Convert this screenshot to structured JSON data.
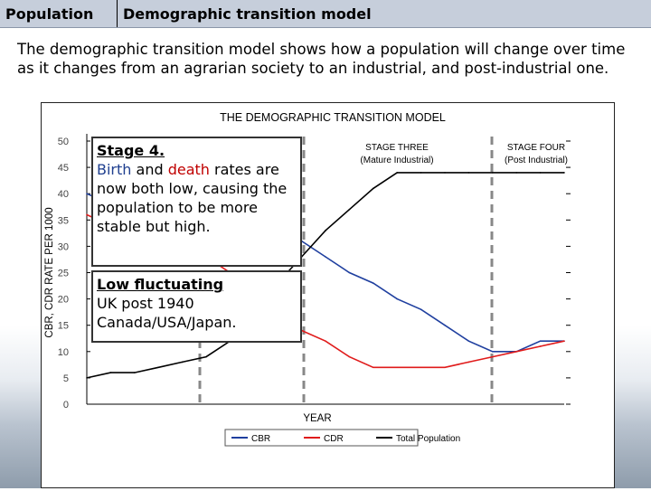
{
  "header": {
    "tab1": "Population",
    "tab2": "Demographic transition model"
  },
  "intro": "The demographic transition model shows how a population will change over time as it changes from an agrarian society to an industrial, and post-industrial one.",
  "box1": {
    "title": "Stage 4.",
    "birth": "Birth",
    "and": " and ",
    "death": "death",
    "rest": " rates are now both low, causing the population to be more stable but high."
  },
  "box2": {
    "title": "Low fluctuating",
    "line1": "UK post 1940",
    "line2": "Canada/USA/Japan."
  },
  "chart_data": {
    "type": "line",
    "title": "THE DEMOGRAPHIC TRANSITION MODEL",
    "xlabel": "YEAR",
    "ylabel": "CBR, CDR RATE PER 1000",
    "ylim": [
      0,
      50
    ],
    "yticks": [
      "0",
      "5",
      "10",
      "15",
      "20",
      "25",
      "30",
      "35",
      "40",
      "45",
      "50"
    ],
    "stage_labels": [
      {
        "name": "STAGE THREE",
        "sub": "(Mature Industrial)"
      },
      {
        "name": "STAGE FOUR",
        "sub": "(Post Industrial)"
      }
    ],
    "legend": {
      "position": "bottom",
      "entries": [
        "CBR",
        "CDR",
        "Total Population"
      ]
    },
    "colors": {
      "CBR": "#1f3f9f",
      "CDR": "#e01b1b",
      "Total Population": "#000000"
    },
    "x": [
      0,
      5,
      10,
      15,
      20,
      25,
      30,
      35,
      40,
      45,
      50,
      55,
      60,
      65,
      70,
      75,
      80,
      85,
      90,
      95,
      100
    ],
    "series": [
      {
        "name": "CBR",
        "values": [
          40,
          38,
          38,
          38,
          37,
          37,
          36,
          34,
          32,
          31,
          28,
          25,
          23,
          20,
          18,
          15,
          12,
          10,
          10,
          12,
          12
        ]
      },
      {
        "name": "CDR",
        "values": [
          36,
          34,
          33,
          32,
          30,
          28,
          25,
          20,
          16,
          14,
          12,
          9,
          7,
          7,
          7,
          7,
          8,
          9,
          10,
          11,
          12
        ]
      },
      {
        "name": "Total Population",
        "values": [
          5,
          6,
          6,
          7,
          8,
          9,
          12,
          17,
          23,
          28,
          33,
          37,
          41,
          44,
          44,
          44,
          44,
          44,
          44,
          44,
          44
        ]
      }
    ]
  }
}
